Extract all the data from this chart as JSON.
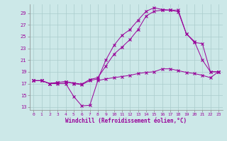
{
  "background_color": "#cce8e8",
  "grid_color": "#aacccc",
  "line_color": "#990099",
  "xlabel": "Windchill (Refroidissement éolien,°C)",
  "xlim": [
    -0.5,
    23.5
  ],
  "ylim": [
    12.5,
    30.5
  ],
  "yticks": [
    13,
    15,
    17,
    19,
    21,
    23,
    25,
    27,
    29
  ],
  "xticks": [
    0,
    1,
    2,
    3,
    4,
    5,
    6,
    7,
    8,
    9,
    10,
    11,
    12,
    13,
    14,
    15,
    16,
    17,
    18,
    19,
    20,
    21,
    22,
    23
  ],
  "line1_x": [
    0,
    1,
    2,
    3,
    4,
    5,
    6,
    7,
    8,
    9,
    10,
    11,
    12,
    13,
    14,
    15,
    16,
    17,
    18,
    19,
    20,
    21,
    22,
    23
  ],
  "line1_y": [
    17.5,
    17.5,
    17.0,
    17.0,
    17.0,
    14.8,
    13.2,
    13.3,
    17.5,
    17.8,
    18.0,
    18.2,
    18.4,
    18.7,
    18.9,
    19.0,
    19.5,
    19.5,
    19.2,
    18.9,
    18.7,
    18.4,
    18.0,
    19.0
  ],
  "line2_x": [
    0,
    1,
    2,
    3,
    4,
    5,
    6,
    7,
    8,
    9,
    10,
    11,
    12,
    13,
    14,
    15,
    16,
    17,
    18,
    19,
    20,
    21,
    22,
    23
  ],
  "line2_y": [
    17.5,
    17.5,
    17.0,
    17.2,
    17.3,
    17.0,
    16.8,
    17.5,
    17.8,
    21.0,
    23.5,
    25.2,
    26.2,
    27.8,
    29.3,
    29.9,
    29.6,
    29.5,
    29.5,
    25.5,
    24.2,
    21.0,
    19.0,
    19.0
  ],
  "line3_x": [
    0,
    1,
    2,
    3,
    4,
    5,
    6,
    7,
    8,
    9,
    10,
    11,
    12,
    13,
    14,
    15,
    16,
    17,
    18,
    19,
    20,
    21,
    22,
    23
  ],
  "line3_y": [
    17.5,
    17.5,
    17.0,
    17.2,
    17.3,
    17.1,
    16.9,
    17.7,
    18.0,
    20.0,
    22.0,
    23.2,
    24.5,
    26.2,
    28.5,
    29.3,
    29.5,
    29.5,
    29.2,
    25.5,
    24.0,
    23.8,
    19.0,
    19.0
  ]
}
